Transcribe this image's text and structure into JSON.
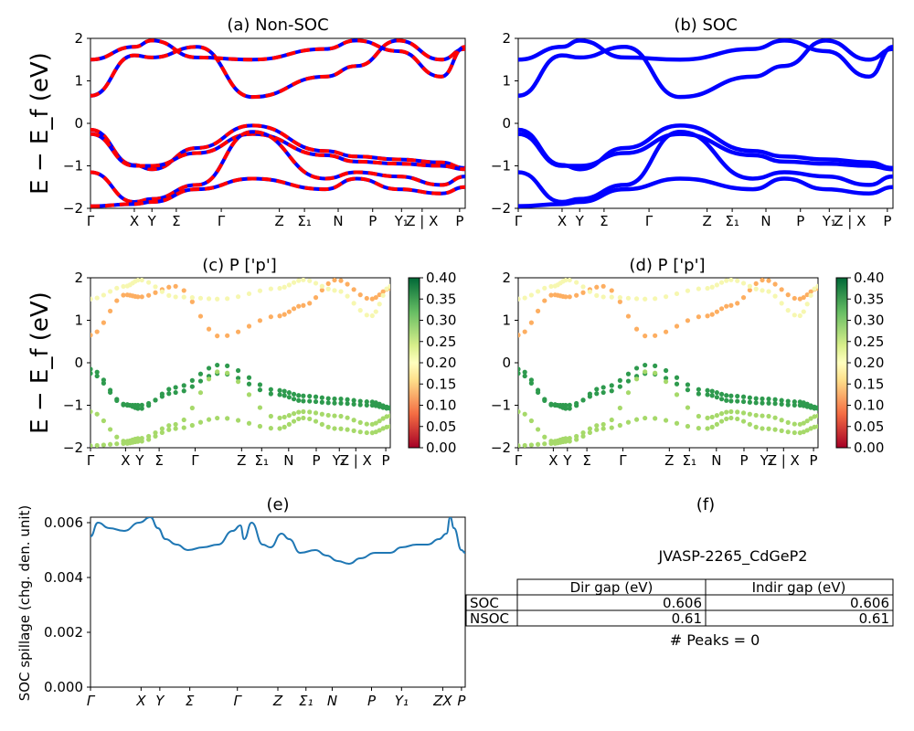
{
  "chart_data": [
    {
      "type": "line",
      "title": "(a) Non-SOC",
      "ylabel": "E − E_f (eV)",
      "ylim": [
        -2,
        2
      ],
      "yticks": [
        "2",
        "1",
        "0",
        "−1",
        "−2"
      ],
      "kpath": [
        "Γ",
        "X",
        "Y",
        "Σ",
        "Γ",
        "Z",
        "Σ₁",
        "N",
        "P",
        "Y₁",
        "Z | X",
        "P"
      ],
      "kpos": [
        0,
        0.117,
        0.164,
        0.284,
        0.432,
        0.626,
        0.71,
        0.821,
        0.936,
        1.0,
        1.0,
        1.0
      ],
      "series": [
        {
          "values": [
            [
              0,
              -0.15
            ],
            [
              0.117,
              -0.98
            ],
            [
              0.164,
              -1.08
            ],
            [
              0.284,
              -0.58
            ],
            [
              0.432,
              -0.05
            ],
            [
              0.626,
              -0.65
            ],
            [
              0.71,
              -0.78
            ],
            [
              0.821,
              -0.85
            ],
            [
              0.936,
              -0.92
            ],
            [
              1.0,
              -1.05
            ]
          ]
        },
        {
          "values": [
            [
              0,
              -0.25
            ],
            [
              0.117,
              -1.0
            ],
            [
              0.164,
              -1.0
            ],
            [
              0.284,
              -0.7
            ],
            [
              0.432,
              -0.25
            ],
            [
              0.626,
              -0.75
            ],
            [
              0.71,
              -0.9
            ],
            [
              0.821,
              -0.95
            ],
            [
              0.936,
              -1.0
            ],
            [
              1.0,
              -1.08
            ]
          ]
        },
        {
          "values": [
            [
              0,
              -1.15
            ],
            [
              0.117,
              -1.85
            ],
            [
              0.164,
              -1.78
            ],
            [
              0.284,
              -1.45
            ],
            [
              0.432,
              -0.2
            ],
            [
              0.626,
              -1.3
            ],
            [
              0.71,
              -1.15
            ],
            [
              0.821,
              -1.25
            ],
            [
              0.936,
              -1.45
            ],
            [
              1.0,
              -1.25
            ]
          ]
        },
        {
          "values": [
            [
              0,
              -1.95
            ],
            [
              0.117,
              -1.9
            ],
            [
              0.164,
              -1.85
            ],
            [
              0.284,
              -1.55
            ],
            [
              0.432,
              -1.3
            ],
            [
              0.626,
              -1.55
            ],
            [
              0.71,
              -1.3
            ],
            [
              0.821,
              -1.55
            ],
            [
              0.936,
              -1.65
            ],
            [
              1.0,
              -1.5
            ]
          ]
        },
        {
          "values": [
            [
              0,
              0.65
            ],
            [
              0.117,
              1.6
            ],
            [
              0.164,
              1.55
            ],
            [
              0.284,
              1.8
            ],
            [
              0.432,
              0.62
            ],
            [
              0.626,
              1.1
            ],
            [
              0.71,
              1.35
            ],
            [
              0.821,
              1.95
            ],
            [
              0.936,
              1.5
            ],
            [
              1.0,
              1.75
            ]
          ]
        },
        {
          "values": [
            [
              0,
              1.5
            ],
            [
              0.117,
              1.8
            ],
            [
              0.164,
              1.95
            ],
            [
              0.284,
              1.55
            ],
            [
              0.432,
              1.5
            ],
            [
              0.626,
              1.75
            ],
            [
              0.71,
              1.95
            ],
            [
              0.821,
              1.7
            ],
            [
              0.936,
              1.1
            ],
            [
              1.0,
              1.8
            ]
          ]
        }
      ],
      "colors": {
        "nsoc": "#ff0000",
        "soc": "#0000ff"
      }
    },
    {
      "type": "line",
      "title": "(b) SOC",
      "ylim": [
        -2,
        2
      ],
      "yticks": [
        "2",
        "1",
        "0",
        "−1",
        "−2"
      ],
      "kpath": [
        "Γ",
        "X",
        "Y",
        "Σ",
        "Γ",
        "Z",
        "Σ₁",
        "N",
        "P",
        "Y₁",
        "Z | X",
        "P"
      ],
      "color": "#0000ff"
    },
    {
      "type": "scatter",
      "title": "(c)  P ['p']",
      "ylabel": "E − E_f (eV)",
      "ylim": [
        -2,
        2
      ],
      "yticks": [
        "2",
        "1",
        "0",
        "−1",
        "−2"
      ],
      "kpath": [
        "Γ",
        "X",
        "Y",
        "Σ",
        "Γ",
        "Z",
        "Σ₁",
        "N",
        "P",
        "Y₁",
        "Z | X",
        "P"
      ],
      "colorbar": {
        "min": 0.0,
        "max": 0.4,
        "ticks": [
          "0.40",
          "0.35",
          "0.30",
          "0.25",
          "0.20",
          "0.15",
          "0.10",
          "0.05",
          "0.00"
        ],
        "cmap": "RdYlGn"
      }
    },
    {
      "type": "scatter",
      "title": "(d) P ['p']",
      "ylim": [
        -2,
        2
      ],
      "yticks": [
        "2",
        "1",
        "0",
        "−1",
        "−2"
      ],
      "kpath": [
        "Γ",
        "X",
        "Y",
        "Σ",
        "Γ",
        "Z",
        "Σ₁",
        "N",
        "P",
        "Y₁",
        "Z | X",
        "P"
      ],
      "colorbar": {
        "min": 0.0,
        "max": 0.4,
        "ticks": [
          "0.40",
          "0.35",
          "0.30",
          "0.25",
          "0.20",
          "0.15",
          "0.10",
          "0.05",
          "0.00"
        ],
        "cmap": "RdYlGn"
      }
    },
    {
      "type": "line",
      "title": "(e)",
      "ylabel": "SOC spillage (chg. den. unit)",
      "ylim": [
        0,
        0.0062
      ],
      "yticks": [
        "0.006",
        "0.004",
        "0.002",
        "0.000"
      ],
      "kpath": [
        "Γ",
        "X",
        "Y",
        "Σ",
        "Γ",
        "Z",
        "Σ₁",
        "N",
        "P",
        "Y₁",
        "ZX",
        "P"
      ],
      "kpos": [
        0,
        0.135,
        0.185,
        0.265,
        0.392,
        0.5,
        0.575,
        0.645,
        0.75,
        0.83,
        0.94,
        0.99
      ],
      "color": "#1f77b4",
      "values": [
        [
          0,
          0.0055
        ],
        [
          0.02,
          0.006
        ],
        [
          0.05,
          0.0058
        ],
        [
          0.09,
          0.0057
        ],
        [
          0.13,
          0.006
        ],
        [
          0.16,
          0.0062
        ],
        [
          0.18,
          0.0058
        ],
        [
          0.2,
          0.0054
        ],
        [
          0.23,
          0.0052
        ],
        [
          0.26,
          0.005
        ],
        [
          0.3,
          0.0051
        ],
        [
          0.34,
          0.0052
        ],
        [
          0.38,
          0.0057
        ],
        [
          0.4,
          0.0059
        ],
        [
          0.41,
          0.0054
        ],
        [
          0.43,
          0.006
        ],
        [
          0.46,
          0.0052
        ],
        [
          0.48,
          0.0051
        ],
        [
          0.51,
          0.0056
        ],
        [
          0.53,
          0.0054
        ],
        [
          0.56,
          0.0049
        ],
        [
          0.6,
          0.005
        ],
        [
          0.63,
          0.0048
        ],
        [
          0.66,
          0.0046
        ],
        [
          0.69,
          0.0045
        ],
        [
          0.72,
          0.0047
        ],
        [
          0.76,
          0.0049
        ],
        [
          0.8,
          0.0049
        ],
        [
          0.83,
          0.0051
        ],
        [
          0.87,
          0.0052
        ],
        [
          0.9,
          0.0052
        ],
        [
          0.93,
          0.0054
        ],
        [
          0.95,
          0.0056
        ],
        [
          0.96,
          0.0062
        ],
        [
          0.97,
          0.0058
        ],
        [
          0.99,
          0.005
        ],
        [
          1.0,
          0.0049
        ]
      ]
    }
  ],
  "panel_f": {
    "title": "(f)",
    "material": "JVASP-2265_CdGeP2",
    "headers": [
      "",
      "Dir gap (eV)",
      "Indir gap (eV)"
    ],
    "rows": [
      {
        "label": "SOC",
        "dir": "0.606",
        "indir": "0.606"
      },
      {
        "label": "NSOC",
        "dir": "0.61",
        "indir": "0.61"
      }
    ],
    "peaks": "# Peaks = 0"
  }
}
